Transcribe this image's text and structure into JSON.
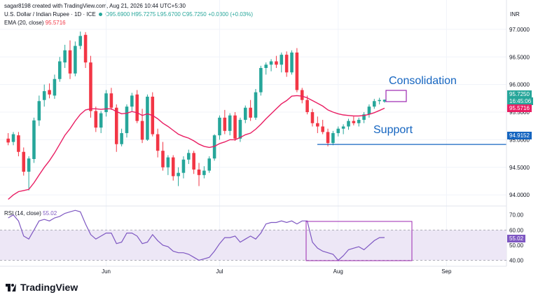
{
  "header": {
    "creator_line": "sagar8198 created with TradingView.com, Aug 21, 2026 10:44 UTC+5:30",
    "symbol": "U.S. Dollar / Indian Rupee · 1D · ICE",
    "ohlc": "O95.6900 H95.7275 L95.6700 C95.7250 +0.0300 (+0.03%)",
    "ema_label": "EMA (20, close)",
    "ema_value": "95.5716",
    "currency": "INR"
  },
  "colors": {
    "up": "#26a69a",
    "down": "#f23645",
    "ema": "#e91e63",
    "rsi": "#7e57c2",
    "annotation": "#1565c0",
    "box": "#9c27b0"
  },
  "annotations": {
    "consolidation": "Consolidation",
    "support": "Support",
    "support_level": 94.9152
  },
  "price_tags": {
    "last": "95.7250",
    "countdown": "16:45:06",
    "ema": "95.5716",
    "support": "94.9152"
  },
  "rsi": {
    "label": "RSI (14, close)",
    "value": "55.02",
    "ticks": [
      "70.00",
      "60.00",
      "50.00",
      "40.00"
    ]
  },
  "branding": {
    "name": "TradingView"
  },
  "chart_data": {
    "type": "candlestick",
    "ylim": [
      93.85,
      97.1
    ],
    "yticks": [
      94.0,
      94.5,
      95.0,
      95.5,
      96.0,
      96.5,
      97.0
    ],
    "ytick_labels": [
      "94.0000",
      "94.5000",
      "95.0000",
      "95.5000",
      "96.0000",
      "96.5000",
      "97.0000"
    ],
    "x_labels": [
      "Jun",
      "Jul",
      "Aug",
      "Sep"
    ],
    "x_label_index": [
      19,
      41,
      64,
      85
    ],
    "total_slots": 97,
    "candles": [
      [
        95.02,
        95.12,
        94.9,
        94.95
      ],
      [
        94.96,
        95.14,
        94.9,
        95.1
      ],
      [
        95.08,
        95.14,
        94.7,
        94.78
      ],
      [
        94.78,
        94.86,
        94.35,
        94.42
      ],
      [
        94.42,
        94.7,
        94.08,
        94.66
      ],
      [
        94.65,
        95.4,
        94.58,
        95.35
      ],
      [
        95.35,
        95.8,
        95.25,
        95.7
      ],
      [
        95.72,
        96.0,
        95.6,
        95.88
      ],
      [
        95.9,
        96.02,
        95.75,
        95.82
      ],
      [
        95.8,
        96.18,
        95.74,
        96.1
      ],
      [
        96.1,
        96.5,
        96.05,
        96.42
      ],
      [
        96.4,
        96.72,
        96.3,
        96.62
      ],
      [
        96.62,
        96.8,
        96.1,
        96.2
      ],
      [
        96.2,
        96.78,
        96.15,
        96.7
      ],
      [
        96.7,
        96.96,
        96.64,
        96.88
      ],
      [
        96.9,
        96.95,
        96.3,
        96.4
      ],
      [
        96.4,
        96.52,
        95.4,
        95.52
      ],
      [
        95.52,
        95.6,
        95.14,
        95.22
      ],
      [
        95.22,
        95.52,
        95.12,
        95.48
      ],
      [
        95.5,
        95.9,
        95.42,
        95.84
      ],
      [
        95.84,
        95.94,
        95.54,
        95.58
      ],
      [
        95.58,
        95.64,
        94.78,
        94.92
      ],
      [
        94.92,
        95.2,
        94.88,
        95.12
      ],
      [
        95.12,
        95.64,
        95.04,
        95.6
      ],
      [
        95.6,
        95.85,
        95.52,
        95.8
      ],
      [
        95.82,
        95.9,
        95.3,
        95.34
      ],
      [
        95.34,
        95.56,
        94.94,
        95.0
      ],
      [
        95.0,
        95.82,
        94.98,
        95.78
      ],
      [
        95.78,
        95.86,
        95.06,
        95.1
      ],
      [
        95.1,
        95.2,
        94.68,
        94.8
      ],
      [
        94.8,
        94.96,
        94.44,
        94.5
      ],
      [
        94.5,
        94.72,
        94.36,
        94.68
      ],
      [
        94.68,
        94.72,
        94.26,
        94.34
      ],
      [
        94.34,
        94.5,
        94.16,
        94.4
      ],
      [
        94.4,
        94.7,
        94.3,
        94.64
      ],
      [
        94.64,
        94.82,
        94.56,
        94.76
      ],
      [
        94.76,
        94.8,
        94.38,
        94.46
      ],
      [
        94.46,
        94.58,
        94.16,
        94.36
      ],
      [
        94.36,
        94.52,
        94.3,
        94.44
      ],
      [
        94.44,
        94.7,
        94.4,
        94.66
      ],
      [
        94.66,
        95.1,
        94.62,
        95.08
      ],
      [
        95.08,
        95.44,
        95.0,
        95.4
      ],
      [
        95.4,
        95.54,
        95.1,
        95.16
      ],
      [
        95.16,
        95.48,
        95.08,
        95.44
      ],
      [
        95.44,
        95.5,
        94.98,
        95.02
      ],
      [
        95.02,
        95.4,
        94.96,
        95.36
      ],
      [
        95.36,
        95.62,
        95.3,
        95.58
      ],
      [
        95.58,
        95.72,
        95.34,
        95.4
      ],
      [
        95.4,
        95.92,
        95.36,
        95.86
      ],
      [
        95.86,
        96.34,
        95.8,
        96.3
      ],
      [
        96.3,
        96.4,
        96.18,
        96.36
      ],
      [
        96.36,
        96.46,
        96.24,
        96.42
      ],
      [
        96.42,
        96.52,
        96.3,
        96.36
      ],
      [
        96.36,
        96.58,
        96.22,
        96.54
      ],
      [
        96.54,
        96.6,
        96.14,
        96.22
      ],
      [
        96.22,
        96.62,
        96.18,
        96.58
      ],
      [
        96.58,
        96.66,
        95.86,
        95.9
      ],
      [
        95.9,
        95.94,
        95.66,
        95.72
      ],
      [
        95.72,
        95.8,
        95.46,
        95.5
      ],
      [
        95.5,
        95.56,
        95.24,
        95.3
      ],
      [
        95.3,
        95.42,
        95.12,
        95.24
      ],
      [
        95.24,
        95.36,
        95.1,
        95.14
      ],
      [
        95.14,
        95.2,
        94.88,
        94.94
      ],
      [
        94.94,
        95.16,
        94.9,
        95.12
      ],
      [
        95.12,
        95.24,
        95.06,
        95.2
      ],
      [
        95.2,
        95.28,
        95.1,
        95.24
      ],
      [
        95.24,
        95.38,
        95.18,
        95.34
      ],
      [
        95.34,
        95.42,
        95.26,
        95.3
      ],
      [
        95.3,
        95.4,
        95.24,
        95.36
      ],
      [
        95.36,
        95.5,
        95.3,
        95.46
      ],
      [
        95.46,
        95.64,
        95.4,
        95.6
      ],
      [
        95.6,
        95.74,
        95.56,
        95.7
      ],
      [
        95.7,
        95.76,
        95.64,
        95.72
      ],
      [
        95.69,
        95.73,
        95.67,
        95.725
      ]
    ],
    "ema": [
      93.92,
      94.0,
      94.06,
      94.08,
      94.1,
      94.22,
      94.36,
      94.5,
      94.62,
      94.76,
      94.92,
      95.08,
      95.2,
      95.34,
      95.46,
      95.54,
      95.56,
      95.56,
      95.55,
      95.56,
      95.56,
      95.51,
      95.47,
      95.48,
      95.51,
      95.49,
      95.44,
      95.47,
      95.44,
      95.38,
      95.3,
      95.24,
      95.17,
      95.1,
      95.06,
      95.03,
      94.98,
      94.92,
      94.88,
      94.86,
      94.88,
      94.93,
      94.96,
      95.0,
      95.0,
      95.04,
      95.09,
      95.12,
      95.19,
      95.28,
      95.38,
      95.47,
      95.56,
      95.65,
      95.71,
      95.79,
      95.8,
      95.79,
      95.76,
      95.71,
      95.66,
      95.61,
      95.54,
      95.5,
      95.47,
      95.45,
      95.44,
      95.43,
      95.43,
      95.44,
      95.46,
      95.49,
      95.53,
      95.5716
    ],
    "rsi_ylim": [
      37,
      74
    ],
    "rsi_values": [
      68,
      70,
      66,
      56,
      54,
      60,
      66,
      67,
      66,
      68,
      69,
      71,
      72,
      73,
      72,
      64,
      57,
      54,
      56,
      58,
      58,
      51,
      52,
      58,
      58,
      56,
      51,
      52,
      57,
      53,
      50,
      49,
      46,
      45,
      45,
      44,
      42,
      40,
      41,
      42,
      46,
      51,
      55,
      55,
      56,
      52,
      54,
      56,
      54,
      58,
      64,
      65,
      65,
      66,
      65,
      66,
      64,
      66,
      66,
      52,
      48,
      46,
      45,
      44,
      40,
      43,
      47,
      48,
      49,
      47,
      50,
      53,
      55,
      55.02
    ]
  }
}
